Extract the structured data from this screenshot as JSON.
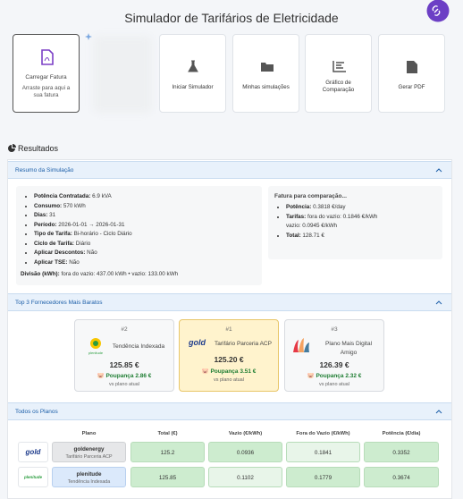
{
  "header": {
    "title": "Simulador de Tarifários de Eletricidade"
  },
  "actions": {
    "upload": {
      "title": "Carregar Fatura",
      "hint": "Arraste para aqui a sua fatura"
    },
    "items": [
      "Iniciar Simulador",
      "Minhas simulações",
      "Gráfico de Comparação",
      "Gerar PDF"
    ]
  },
  "results": {
    "title": "Resultados",
    "summary": {
      "title": "Resumo da Simulação",
      "items": [
        {
          "label": "Potência Contratada:",
          "value": "6.9 kVA"
        },
        {
          "label": "Consumo:",
          "value": "570 kWh"
        },
        {
          "label": "Dias:",
          "value": "31"
        },
        {
          "label": "Período:",
          "value": "2026-01-01 → 2026-01-31"
        },
        {
          "label": "Tipo de Tarifa:",
          "value": "Bi-horário - Ciclo Diário"
        },
        {
          "label": "Ciclo de Tarifa:",
          "value": "Diário"
        },
        {
          "label": "Aplicar Descontos:",
          "value": "Não"
        },
        {
          "label": "Aplicar TSE:",
          "value": "Não"
        }
      ],
      "division": {
        "label": "Divisão (kWh):",
        "value": "fora do vazio: 437.00 kWh • vazio: 133.00 kWh"
      },
      "comparison": {
        "title": "Fatura para comparação...",
        "items": [
          {
            "label": "Potência:",
            "value": "0.3818 €/day"
          },
          {
            "label": "Tarifas:",
            "value": "fora do vazio: 0.1846 €/kWh vazio: 0.0945 €/kWh"
          },
          {
            "label": "Total:",
            "value": "128.71 €"
          }
        ]
      }
    },
    "top3": {
      "title": "Top 3 Fornecedores Mais Baratos",
      "cards": [
        {
          "rank": "#2",
          "logo": "plenitude",
          "name": "Tendência Indexada",
          "price": "125.85 €",
          "savings": "Poupança 2.86 €",
          "note": "vs plano atual"
        },
        {
          "rank": "#1",
          "logo": "gold",
          "name": "Tarifário Parceria ACP",
          "price": "125.20 €",
          "savings": "Poupança 3.51 €",
          "note": "vs plano atual"
        },
        {
          "rank": "#3",
          "name": "Plano Mais Digital Amigo",
          "price": "126.39 €",
          "savings": "Poupança 2.32 €",
          "note": "vs plano atual"
        }
      ]
    },
    "plans": {
      "title": "Todos os Planos",
      "columns": [
        "Plano",
        "Total (€)",
        "Vazio (€/kWh)",
        "Fora do Vazio (€/kWh)",
        "Potência (€/dia)"
      ],
      "rows": [
        {
          "logo": "gold",
          "supplier": "goldenergy",
          "plan": "Tarifário Parceria ACP",
          "cells": [
            125.2,
            0.0936,
            0.1841,
            0.3352
          ]
        },
        {
          "logo": "plenitude",
          "supplier": "plenitude",
          "plan": "Tendência Indexada",
          "cells": [
            125.85,
            0.1102,
            0.1779,
            0.3674
          ]
        }
      ]
    }
  }
}
